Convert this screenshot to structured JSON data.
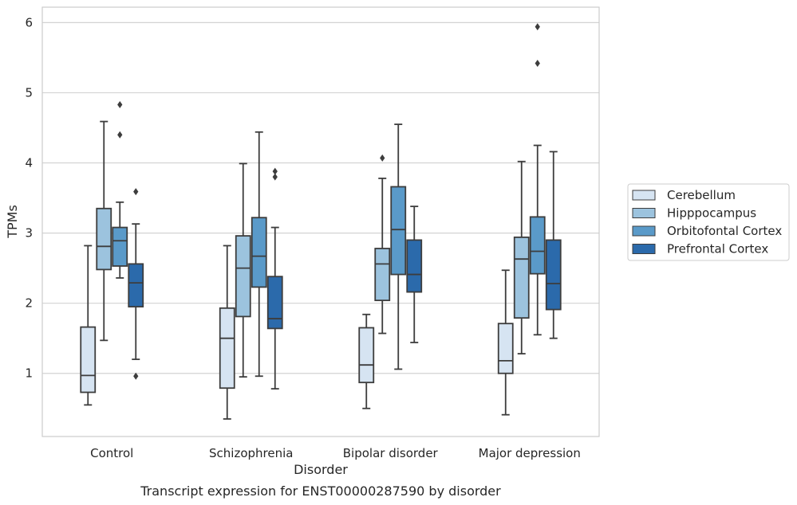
{
  "chart_data": {
    "type": "box",
    "categories": [
      "Control",
      "Schizophrenia",
      "Bipolar disorder",
      "Major depression"
    ],
    "xlabel": "Disorder",
    "ylabel": "TPMs",
    "caption": "Transcript expression for ENST00000287590 by disorder",
    "yticks": [
      1,
      2,
      3,
      4,
      5,
      6
    ],
    "ylim": [
      0.1,
      6.22
    ],
    "grid": "horizontal",
    "legend_position": "right",
    "series": [
      {
        "name": "Cerebellum",
        "color": "#d6e4f2",
        "boxes": [
          {
            "whisker_low": 0.55,
            "q1": 0.73,
            "median": 0.97,
            "q3": 1.66,
            "whisker_high": 2.82,
            "outliers": []
          },
          {
            "whisker_low": 0.35,
            "q1": 0.79,
            "median": 1.5,
            "q3": 1.93,
            "whisker_high": 2.82,
            "outliers": []
          },
          {
            "whisker_low": 0.5,
            "q1": 0.87,
            "median": 1.12,
            "q3": 1.65,
            "whisker_high": 1.84,
            "outliers": []
          },
          {
            "whisker_low": 0.41,
            "q1": 1.0,
            "median": 1.18,
            "q3": 1.71,
            "whisker_high": 2.47,
            "outliers": []
          }
        ]
      },
      {
        "name": "Hipppocampus",
        "color": "#9cc3de",
        "boxes": [
          {
            "whisker_low": 1.47,
            "q1": 2.48,
            "median": 2.81,
            "q3": 3.35,
            "whisker_high": 4.59,
            "outliers": []
          },
          {
            "whisker_low": 0.95,
            "q1": 1.81,
            "median": 2.5,
            "q3": 2.96,
            "whisker_high": 3.99,
            "outliers": []
          },
          {
            "whisker_low": 1.57,
            "q1": 2.04,
            "median": 2.56,
            "q3": 2.78,
            "whisker_high": 3.78,
            "outliers": [
              4.07
            ]
          },
          {
            "whisker_low": 1.28,
            "q1": 1.79,
            "median": 2.63,
            "q3": 2.94,
            "whisker_high": 4.02,
            "outliers": []
          }
        ]
      },
      {
        "name": "Orbitofontal Cortex",
        "color": "#5a9ac9",
        "boxes": [
          {
            "whisker_low": 2.36,
            "q1": 2.53,
            "median": 2.89,
            "q3": 3.08,
            "whisker_high": 3.44,
            "outliers": [
              4.4,
              4.83
            ]
          },
          {
            "whisker_low": 0.96,
            "q1": 2.23,
            "median": 2.67,
            "q3": 3.22,
            "whisker_high": 4.44,
            "outliers": []
          },
          {
            "whisker_low": 1.06,
            "q1": 2.41,
            "median": 3.05,
            "q3": 3.66,
            "whisker_high": 4.55,
            "outliers": []
          },
          {
            "whisker_low": 1.55,
            "q1": 2.42,
            "median": 2.74,
            "q3": 3.23,
            "whisker_high": 4.25,
            "outliers": [
              5.42,
              5.94
            ]
          }
        ]
      },
      {
        "name": "Prefrontal Cortex",
        "color": "#2b6aab",
        "boxes": [
          {
            "whisker_low": 1.2,
            "q1": 1.95,
            "median": 2.29,
            "q3": 2.56,
            "whisker_high": 3.13,
            "outliers": [
              0.96,
              3.59
            ]
          },
          {
            "whisker_low": 0.78,
            "q1": 1.64,
            "median": 1.78,
            "q3": 2.38,
            "whisker_high": 3.08,
            "outliers": [
              3.8,
              3.88
            ]
          },
          {
            "whisker_low": 1.44,
            "q1": 2.16,
            "median": 2.41,
            "q3": 2.9,
            "whisker_high": 3.38,
            "outliers": []
          },
          {
            "whisker_low": 1.5,
            "q1": 1.91,
            "median": 2.28,
            "q3": 2.9,
            "whisker_high": 4.16,
            "outliers": []
          }
        ]
      }
    ]
  }
}
